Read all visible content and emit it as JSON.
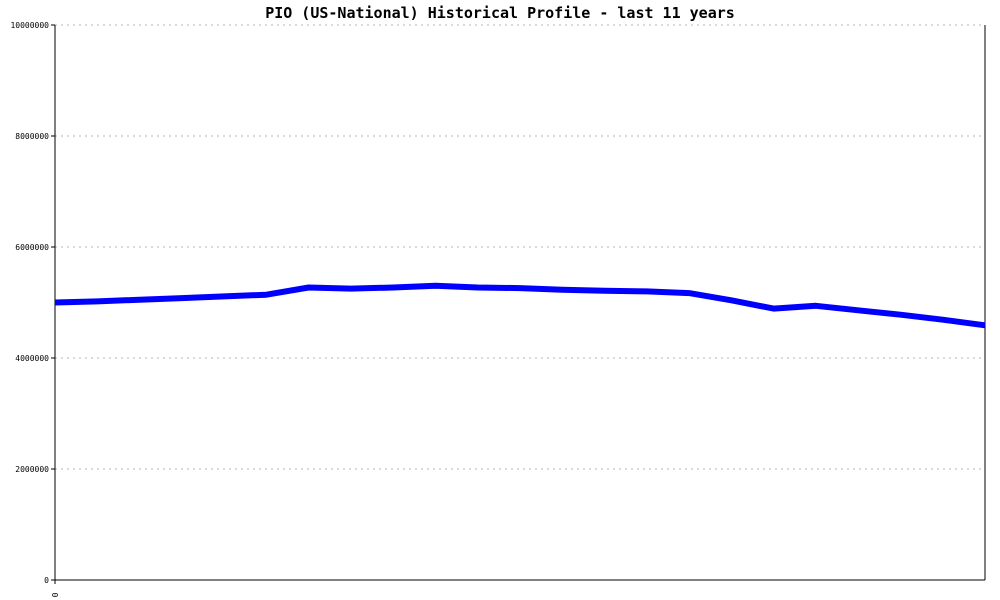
{
  "chart_data": {
    "type": "line",
    "title": "PIO (US-National) Historical Profile - last 11 years",
    "xlabel": "",
    "ylabel": "",
    "ylim": [
      0,
      10000000
    ],
    "y_ticks": [
      {
        "value": 0,
        "label": "0"
      },
      {
        "value": 2000000,
        "label": "2000000"
      },
      {
        "value": 4000000,
        "label": "4000000"
      },
      {
        "value": 6000000,
        "label": "6000000"
      },
      {
        "value": 8000000,
        "label": "8000000"
      },
      {
        "value": 10000000,
        "label": "10000000"
      }
    ],
    "x_tick_label": "0",
    "grid": true,
    "legend": false,
    "series": [
      {
        "color": "#0000ff",
        "values": [
          5000000,
          5020000,
          5050000,
          5080000,
          5110000,
          5140000,
          5270000,
          5250000,
          5270000,
          5300000,
          5270000,
          5260000,
          5230000,
          5210000,
          5200000,
          5170000,
          5040000,
          4890000,
          4940000,
          4860000,
          4780000,
          4690000,
          4590000
        ]
      }
    ]
  }
}
